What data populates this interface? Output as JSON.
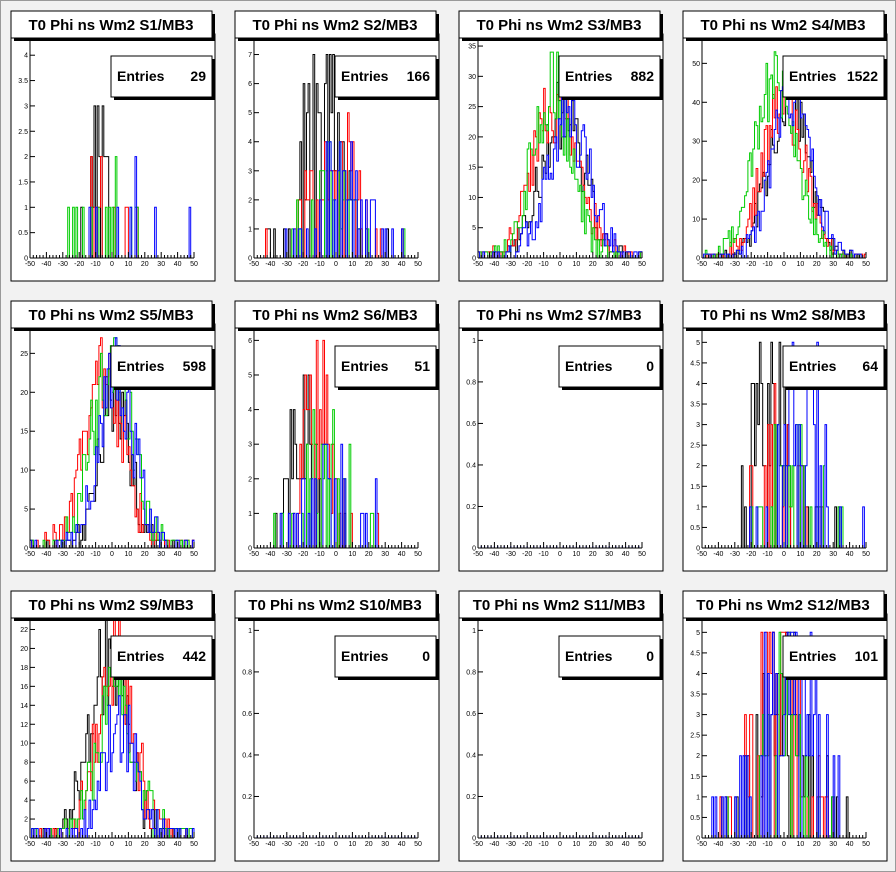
{
  "colors": {
    "background": "#f2f2f2",
    "frame": "#ffffff",
    "black": "#000000",
    "red": "#ff0000",
    "green": "#00cc00",
    "blue": "#0000ff"
  },
  "chart_data": [
    {
      "type": "histogram",
      "title": "T0 Phi ns Wm2 S1/MB3",
      "entries_label": "Entries",
      "entries": "29",
      "xlim": [
        -50,
        50
      ],
      "xticks": [
        "-50",
        "-40",
        "-30",
        "-20",
        "-10",
        "0",
        "10",
        "20",
        "30",
        "40",
        "50"
      ],
      "ylim": [
        0,
        4.3
      ],
      "yticks": [
        "0",
        "0.5",
        "1",
        "1.5",
        "2",
        "2.5",
        "3",
        "3.5",
        "4"
      ],
      "gen": [
        [
          1,
          -8,
          6,
          0.004,
          3.4
        ],
        [
          2,
          -6,
          12,
          0.007,
          1.8
        ],
        [
          3,
          -3,
          14,
          0.004,
          1.6
        ],
        [
          4,
          12,
          14,
          0.006,
          1.5
        ]
      ]
    },
    {
      "type": "histogram",
      "title": "T0 Phi ns Wm2 S2/MB3",
      "entries_label": "Entries",
      "entries": "166",
      "xlim": [
        -50,
        50
      ],
      "xticks": [
        "-50",
        "-40",
        "-30",
        "-20",
        "-10",
        "0",
        "10",
        "20",
        "30",
        "40",
        "50"
      ],
      "ylim": [
        0,
        7.5
      ],
      "yticks": [
        "0",
        "1",
        "2",
        "3",
        "4",
        "5",
        "6",
        "7"
      ],
      "gen": [
        [
          1,
          -10,
          14,
          0.01,
          6.8
        ],
        [
          2,
          -2,
          16,
          0.01,
          4.5
        ],
        [
          3,
          0,
          16,
          0.01,
          3.6
        ],
        [
          4,
          3,
          18,
          0.01,
          3.5
        ]
      ]
    },
    {
      "type": "histogram",
      "title": "T0 Phi ns Wm2 S3/MB3",
      "entries_label": "Entries",
      "entries": "882",
      "xlim": [
        -50,
        50
      ],
      "xticks": [
        "-50",
        "-40",
        "-30",
        "-20",
        "-10",
        "0",
        "10",
        "20",
        "30",
        "40",
        "50"
      ],
      "ylim": [
        0,
        36
      ],
      "yticks": [
        "0",
        "5",
        "10",
        "15",
        "20",
        "25",
        "30",
        "35"
      ],
      "gen": [
        [
          1,
          2,
          13,
          0.6,
          24
        ],
        [
          2,
          -2,
          14,
          0.6,
          25
        ],
        [
          3,
          -5,
          12,
          0.6,
          28
        ],
        [
          4,
          5,
          13,
          0.6,
          23
        ]
      ]
    },
    {
      "type": "histogram",
      "title": "T0 Phi ns Wm2 S4/MB3",
      "entries_label": "Entries",
      "entries": "1522",
      "xlim": [
        -50,
        50
      ],
      "xticks": [
        "-50",
        "-40",
        "-30",
        "-20",
        "-10",
        "0",
        "10",
        "20",
        "30",
        "40",
        "50"
      ],
      "ylim": [
        0,
        56
      ],
      "yticks": [
        "0",
        "10",
        "20",
        "30",
        "40",
        "50"
      ],
      "gen": [
        [
          1,
          3,
          12,
          0.6,
          42
        ],
        [
          2,
          0,
          13,
          0.6,
          40
        ],
        [
          3,
          -5,
          13,
          0.6,
          46
        ],
        [
          4,
          5,
          12,
          0.6,
          42
        ]
      ]
    },
    {
      "type": "histogram",
      "title": "T0 Phi ns Wm2 S5/MB3",
      "entries_label": "Entries",
      "entries": "598",
      "xlim": [
        -50,
        50
      ],
      "xticks": [
        "-50",
        "-40",
        "-30",
        "-20",
        "-10",
        "0",
        "10",
        "20",
        "30",
        "40",
        "50"
      ],
      "ylim": [
        0,
        28
      ],
      "yticks": [
        "0",
        "5",
        "10",
        "15",
        "20",
        "25"
      ],
      "gen": [
        [
          1,
          2,
          9,
          0.3,
          21
        ],
        [
          2,
          -5,
          12,
          0.6,
          23
        ],
        [
          3,
          0,
          12,
          0.6,
          24
        ],
        [
          4,
          3,
          11,
          0.6,
          22
        ]
      ]
    },
    {
      "type": "histogram",
      "title": "T0 Phi ns Wm2 S6/MB3",
      "entries_label": "Entries",
      "entries": "51",
      "xlim": [
        -50,
        50
      ],
      "xticks": [
        "-50",
        "-40",
        "-30",
        "-20",
        "-10",
        "0",
        "10",
        "20",
        "30",
        "40",
        "50"
      ],
      "ylim": [
        0,
        6.3
      ],
      "yticks": [
        "0",
        "1",
        "2",
        "3",
        "4",
        "5",
        "6"
      ],
      "gen": [
        [
          1,
          -20,
          10,
          0.01,
          4.2
        ],
        [
          2,
          -12,
          10,
          0.01,
          5.5
        ],
        [
          3,
          -5,
          14,
          0.01,
          3.6
        ],
        [
          4,
          0,
          20,
          0.01,
          2.8
        ]
      ]
    },
    {
      "type": "histogram",
      "title": "T0 Phi ns Wm2 S7/MB3",
      "entries_label": "Entries",
      "entries": "0",
      "xlim": [
        -50,
        50
      ],
      "xticks": [
        "-50",
        "-40",
        "-30",
        "-20",
        "-10",
        "0",
        "10",
        "20",
        "30",
        "40",
        "50"
      ],
      "ylim": [
        0,
        1.05
      ],
      "yticks": [
        "0",
        "0.2",
        "0.4",
        "0.6",
        "0.8",
        "1"
      ],
      "gen": []
    },
    {
      "type": "histogram",
      "title": "T0 Phi ns Wm2 S8/MB3",
      "entries_label": "Entries",
      "entries": "64",
      "xlim": [
        -50,
        50
      ],
      "xticks": [
        "-50",
        "-40",
        "-30",
        "-20",
        "-10",
        "0",
        "10",
        "20",
        "30",
        "40",
        "50"
      ],
      "ylim": [
        0,
        5.3
      ],
      "yticks": [
        "0",
        "0.5",
        "1",
        "1.5",
        "2",
        "2.5",
        "3",
        "3.5",
        "4",
        "4.5",
        "5"
      ],
      "gen": [
        [
          1,
          -8,
          14,
          0.01,
          5
        ],
        [
          2,
          -5,
          14,
          0.01,
          3
        ],
        [
          3,
          5,
          14,
          0.01,
          3.5
        ],
        [
          4,
          12,
          16,
          0.01,
          4.2
        ]
      ]
    },
    {
      "type": "histogram",
      "title": "T0 Phi ns Wm2 S9/MB3",
      "entries_label": "Entries",
      "entries": "442",
      "xlim": [
        -50,
        50
      ],
      "xticks": [
        "-50",
        "-40",
        "-30",
        "-20",
        "-10",
        "0",
        "10",
        "20",
        "30",
        "40",
        "50"
      ],
      "ylim": [
        0,
        23
      ],
      "yticks": [
        "0",
        "2",
        "4",
        "6",
        "8",
        "10",
        "12",
        "14",
        "16",
        "18",
        "20",
        "22"
      ],
      "gen": [
        [
          1,
          -3,
          12,
          0.3,
          19
        ],
        [
          2,
          2,
          11,
          0.3,
          20
        ],
        [
          3,
          3,
          12,
          0.3,
          15
        ],
        [
          4,
          5,
          10,
          0.3,
          12
        ]
      ]
    },
    {
      "type": "histogram",
      "title": "T0 Phi ns Wm2 S10/MB3",
      "entries_label": "Entries",
      "entries": "0",
      "xlim": [
        -50,
        50
      ],
      "xticks": [
        "-50",
        "-40",
        "-30",
        "-20",
        "-10",
        "0",
        "10",
        "20",
        "30",
        "40",
        "50"
      ],
      "ylim": [
        0,
        1.05
      ],
      "yticks": [
        "0",
        "0.2",
        "0.4",
        "0.6",
        "0.8",
        "1"
      ],
      "gen": []
    },
    {
      "type": "histogram",
      "title": "T0 Phi ns Wm2 S11/MB3",
      "entries_label": "Entries",
      "entries": "0",
      "xlim": [
        -50,
        50
      ],
      "xticks": [
        "-50",
        "-40",
        "-30",
        "-20",
        "-10",
        "0",
        "10",
        "20",
        "30",
        "40",
        "50"
      ],
      "ylim": [
        0,
        1.05
      ],
      "yticks": [
        "0",
        "0.2",
        "0.4",
        "0.6",
        "0.8",
        "1"
      ],
      "gen": []
    },
    {
      "type": "histogram",
      "title": "T0 Phi ns Wm2 S12/MB3",
      "entries_label": "Entries",
      "entries": "101",
      "xlim": [
        -50,
        50
      ],
      "xticks": [
        "-50",
        "-40",
        "-30",
        "-20",
        "-10",
        "0",
        "10",
        "20",
        "30",
        "40",
        "50"
      ],
      "ylim": [
        0,
        5.3
      ],
      "yticks": [
        "0",
        "0.5",
        "1",
        "1.5",
        "2",
        "2.5",
        "3",
        "3.5",
        "4",
        "4.5",
        "5"
      ],
      "gen": [
        [
          1,
          0,
          18,
          0.01,
          4.2
        ],
        [
          2,
          -3,
          16,
          0.01,
          5
        ],
        [
          3,
          0,
          14,
          0.01,
          4
        ],
        [
          4,
          3,
          20,
          0.01,
          5
        ]
      ]
    }
  ]
}
